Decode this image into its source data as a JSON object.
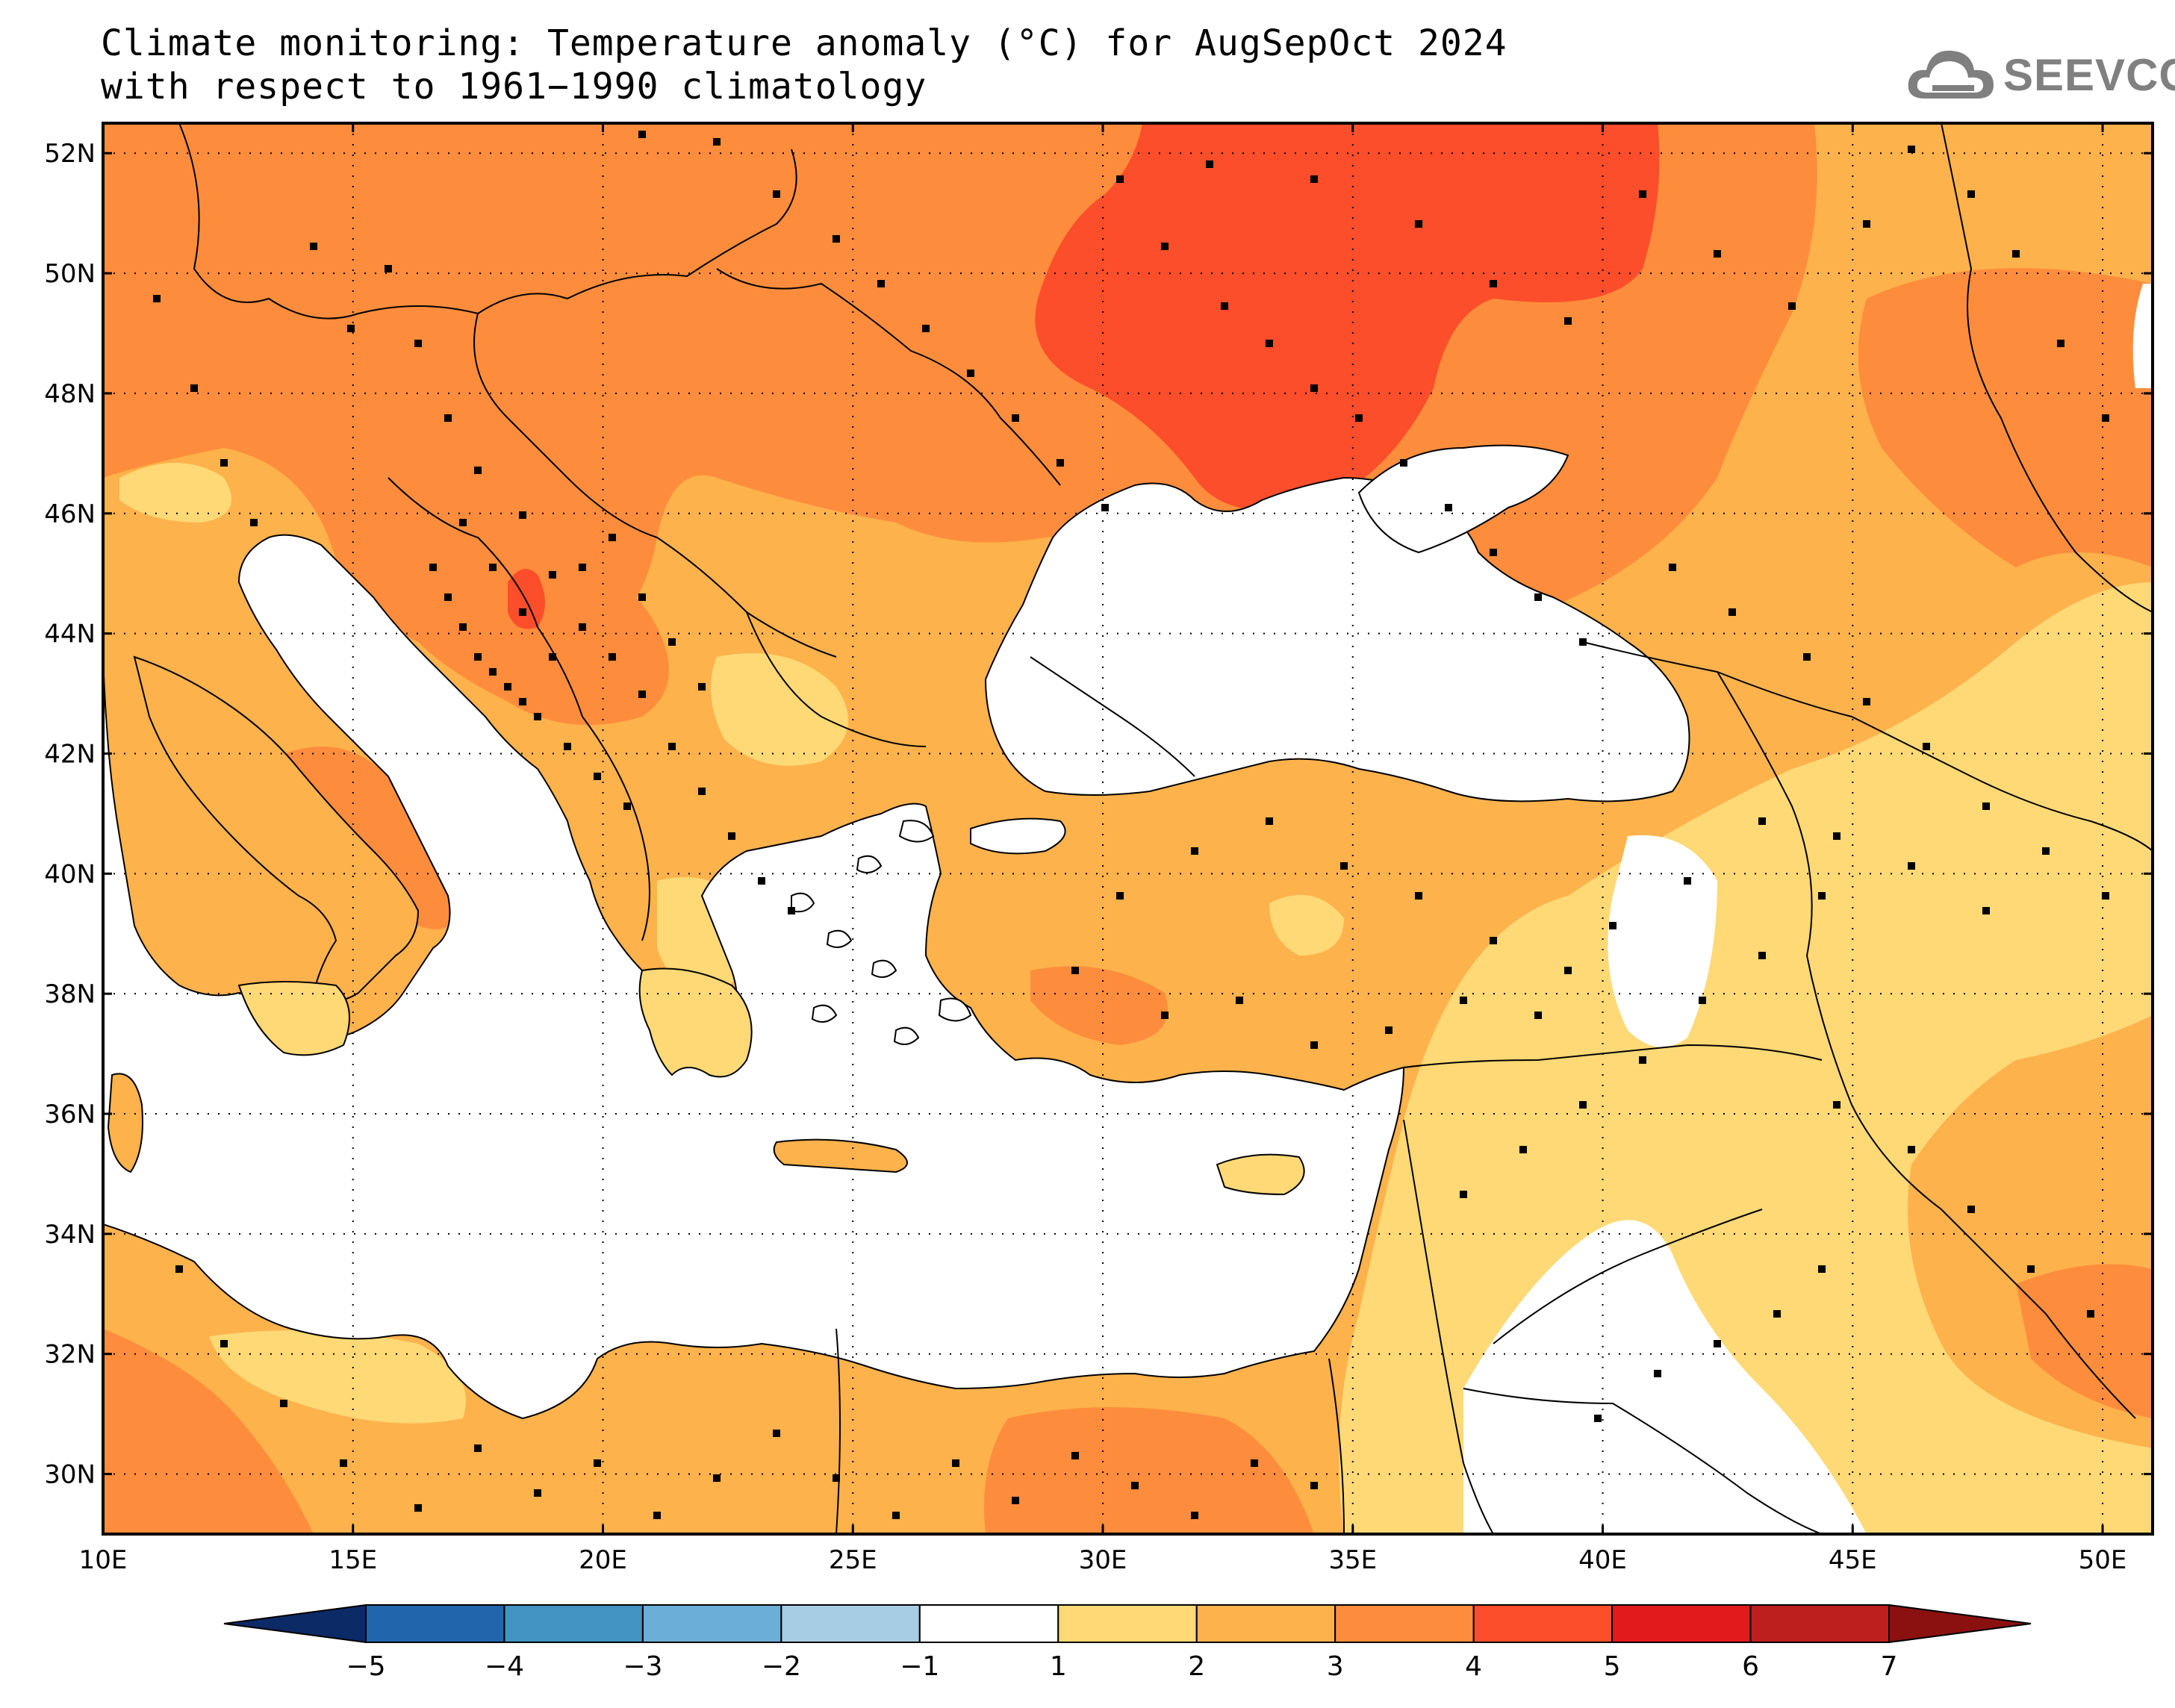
{
  "header": {
    "title_line1": "Climate monitoring: Temperature anomaly (°C) for AugSepOct 2024",
    "title_line2": "with respect to 1961−1990 climatology"
  },
  "logo": {
    "text": "SEEVCCC",
    "icon": "cloud-icon"
  },
  "map": {
    "lon_labels": [
      "10E",
      "15E",
      "20E",
      "25E",
      "30E",
      "35E",
      "40E",
      "45E",
      "50E"
    ],
    "lat_labels": [
      "52N",
      "50N",
      "48N",
      "46N",
      "44N",
      "42N",
      "40N",
      "38N",
      "36N",
      "34N",
      "32N",
      "30N"
    ]
  },
  "colorbar": {
    "tick_labels": [
      "−5",
      "−4",
      "−3",
      "−2",
      "−1",
      "1",
      "2",
      "3",
      "4",
      "5",
      "6",
      "7"
    ],
    "colors": [
      "#0b2a66",
      "#2166ac",
      "#4393c3",
      "#6baed6",
      "#a6cde3",
      "#ffffff",
      "#fed976",
      "#fdb24c",
      "#fd8d3c",
      "#fc4e2a",
      "#e31a1c",
      "#bd1f1f",
      "#8b1111"
    ]
  },
  "palette": {
    "c1_2": "#fed976",
    "c2_3": "#fdb24c",
    "c3_4": "#fd8d3c",
    "c4_5": "#fc4e2a",
    "sea": "#ffffff"
  }
}
